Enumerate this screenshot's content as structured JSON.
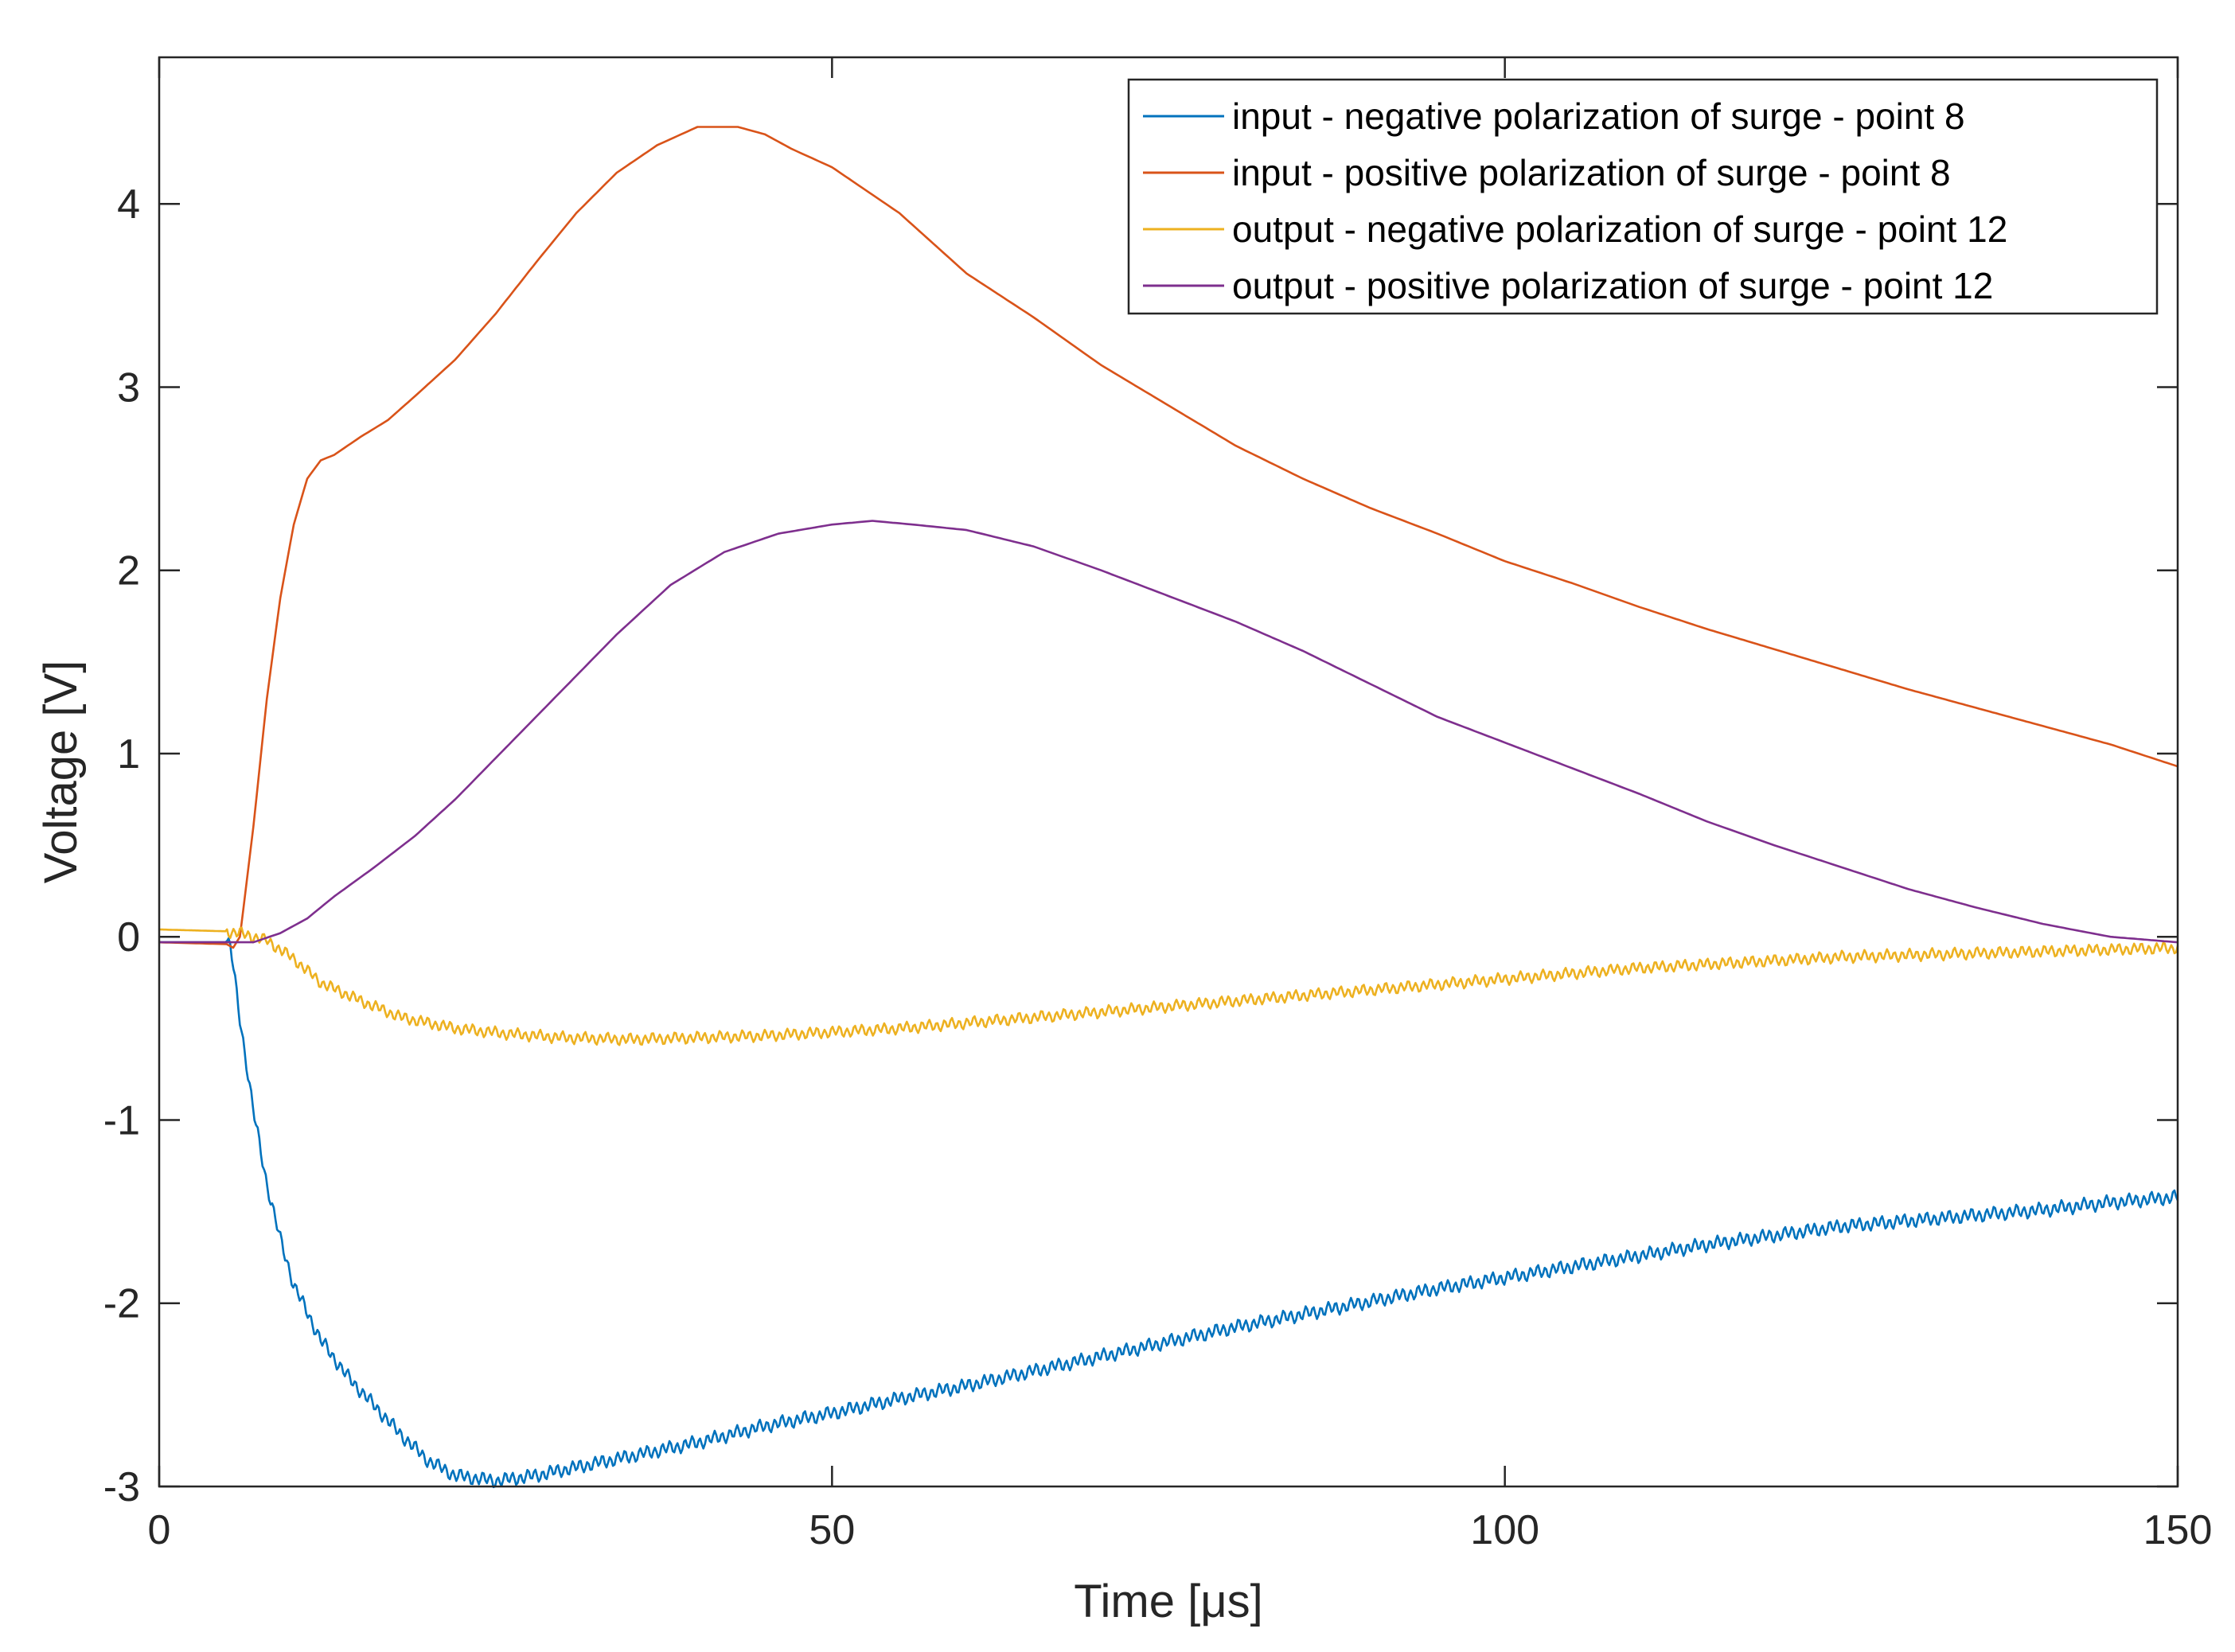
{
  "chart_data": {
    "type": "line",
    "title": "",
    "xlabel": "Time [μs]",
    "ylabel": "Voltage [V]",
    "xlim": [
      0,
      150
    ],
    "ylim": [
      -3,
      4.8
    ],
    "xticks": [
      0,
      50,
      100,
      150
    ],
    "yticks": [
      -3,
      -2,
      -1,
      0,
      1,
      2,
      3,
      4
    ],
    "grid": false,
    "legend_position": "top-right",
    "series": [
      {
        "name": "input - negative polarization of surge - point 8",
        "color": "#0072bd",
        "noise": 0.03,
        "x": [
          0,
          5,
          5.3,
          6,
          7,
          8,
          9,
          10,
          11,
          12,
          14,
          16,
          18,
          20,
          22,
          25,
          28,
          32,
          36,
          40,
          45,
          50,
          55,
          60,
          65,
          70,
          75,
          80,
          85,
          90,
          95,
          100,
          105,
          110,
          115,
          120,
          125,
          130,
          135,
          140,
          145,
          150
        ],
        "y": [
          -0.03,
          -0.03,
          -0.05,
          -0.45,
          -0.95,
          -1.35,
          -1.65,
          -1.9,
          -2.05,
          -2.2,
          -2.4,
          -2.56,
          -2.72,
          -2.86,
          -2.94,
          -2.97,
          -2.94,
          -2.88,
          -2.82,
          -2.76,
          -2.67,
          -2.6,
          -2.52,
          -2.45,
          -2.37,
          -2.29,
          -2.21,
          -2.13,
          -2.06,
          -1.99,
          -1.92,
          -1.86,
          -1.8,
          -1.74,
          -1.68,
          -1.63,
          -1.58,
          -1.55,
          -1.52,
          -1.49,
          -1.45,
          -1.42
        ]
      },
      {
        "name": "input - positive polarization of surge - point 8",
        "color": "#d95319",
        "noise": 0,
        "x": [
          0,
          5,
          5.5,
          6,
          7,
          8,
          9,
          10,
          11,
          12,
          13,
          15,
          17,
          19,
          22,
          25,
          28,
          31,
          34,
          37,
          40,
          43,
          45,
          47,
          50,
          55,
          60,
          65,
          70,
          75,
          80,
          85,
          90,
          95,
          100,
          105,
          110,
          115,
          120,
          125,
          130,
          135,
          140,
          145,
          150
        ],
        "y": [
          -0.03,
          -0.04,
          -0.06,
          0.0,
          0.6,
          1.3,
          1.85,
          2.25,
          2.5,
          2.6,
          2.63,
          2.73,
          2.82,
          2.95,
          3.15,
          3.4,
          3.68,
          3.95,
          4.17,
          4.32,
          4.42,
          4.42,
          4.38,
          4.3,
          4.2,
          3.95,
          3.62,
          3.38,
          3.12,
          2.9,
          2.68,
          2.5,
          2.34,
          2.2,
          2.05,
          1.93,
          1.8,
          1.68,
          1.57,
          1.46,
          1.35,
          1.25,
          1.15,
          1.05,
          0.93
        ]
      },
      {
        "name": "output - negative polarization of surge - point 12",
        "color": "#edb120",
        "noise": 0.025,
        "x": [
          0,
          5,
          6,
          8,
          10,
          12,
          15,
          18,
          22,
          26,
          30,
          35,
          40,
          45,
          50,
          55,
          60,
          65,
          70,
          75,
          80,
          85,
          90,
          95,
          100,
          105,
          110,
          115,
          120,
          125,
          130,
          135,
          140,
          145,
          150
        ],
        "y": [
          0.04,
          0.03,
          0.02,
          -0.02,
          -0.12,
          -0.25,
          -0.35,
          -0.44,
          -0.5,
          -0.53,
          -0.55,
          -0.56,
          -0.55,
          -0.54,
          -0.52,
          -0.5,
          -0.47,
          -0.44,
          -0.41,
          -0.38,
          -0.35,
          -0.32,
          -0.29,
          -0.26,
          -0.23,
          -0.2,
          -0.17,
          -0.15,
          -0.13,
          -0.11,
          -0.1,
          -0.09,
          -0.08,
          -0.07,
          -0.06
        ]
      },
      {
        "name": "output - positive polarization of surge - point 12",
        "color": "#7e2f8e",
        "noise": 0,
        "x": [
          0,
          5,
          7,
          9,
          11,
          13,
          16,
          19,
          22,
          26,
          30,
          34,
          38,
          42,
          46,
          50,
          53,
          56,
          60,
          65,
          70,
          75,
          80,
          85,
          90,
          95,
          100,
          105,
          110,
          115,
          120,
          125,
          130,
          135,
          140,
          145,
          150
        ],
        "y": [
          -0.03,
          -0.03,
          -0.03,
          0.02,
          0.1,
          0.22,
          0.38,
          0.55,
          0.75,
          1.05,
          1.35,
          1.65,
          1.92,
          2.1,
          2.2,
          2.25,
          2.27,
          2.25,
          2.22,
          2.13,
          2.0,
          1.86,
          1.72,
          1.56,
          1.38,
          1.2,
          1.06,
          0.92,
          0.78,
          0.63,
          0.5,
          0.38,
          0.26,
          0.16,
          0.07,
          0.0,
          -0.03
        ]
      }
    ]
  }
}
